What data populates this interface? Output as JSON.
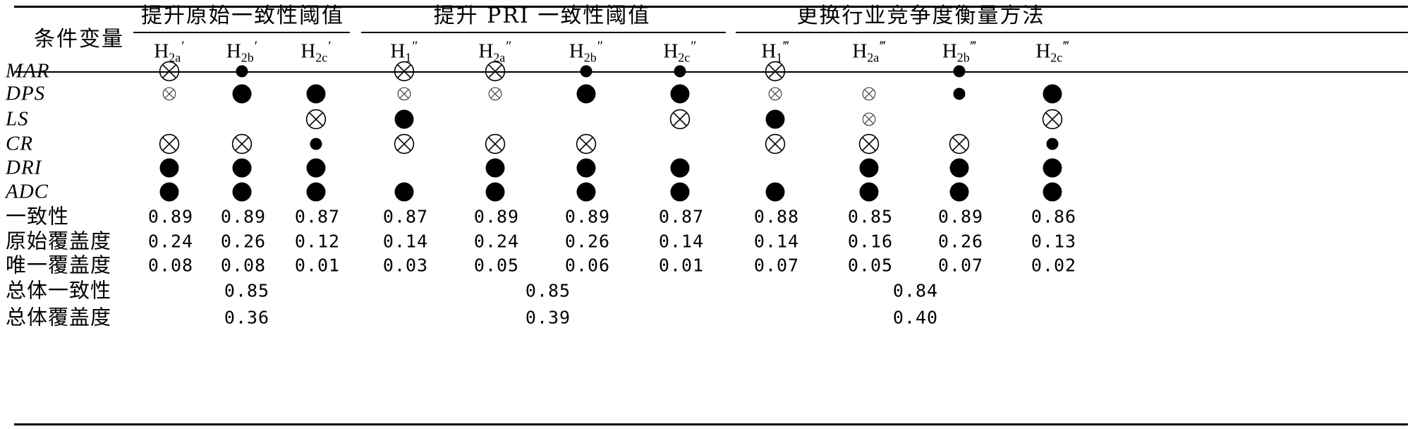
{
  "table": {
    "corner_header": "条件变量",
    "groups": [
      {
        "title": "提升原始一致性阈值",
        "start": 0,
        "span": 3
      },
      {
        "title": "提升 PRI 一致性阈值",
        "start": 3,
        "span": 4
      },
      {
        "title": "更换行业竞争度衡量方法",
        "start": 7,
        "span": 4
      }
    ],
    "columns": [
      {
        "base": "H",
        "sub": "2a",
        "prime": "′"
      },
      {
        "base": "H",
        "sub": "2b",
        "prime": "′"
      },
      {
        "base": "H",
        "sub": "2c",
        "prime": "′"
      },
      {
        "base": "H",
        "sub": "1",
        "prime": "″"
      },
      {
        "base": "H",
        "sub": "2a",
        "prime": "″"
      },
      {
        "base": "H",
        "sub": "2b",
        "prime": "″"
      },
      {
        "base": "H",
        "sub": "2c",
        "prime": "″"
      },
      {
        "base": "H",
        "sub": "1",
        "prime": "‴"
      },
      {
        "base": "H",
        "sub": "2a",
        "prime": "‴"
      },
      {
        "base": "H",
        "sub": "2b",
        "prime": "‴"
      },
      {
        "base": "H",
        "sub": "2c",
        "prime": "‴"
      }
    ],
    "legend_symbols": {
      "B": "core condition present (large filled circle)",
      "b": "peripheral condition present (small filled circle)",
      "X": "core condition absent (large crossed circle)",
      "x": "peripheral condition absent (small crossed circle)",
      "": "blank"
    },
    "condition_rows": [
      {
        "name": "MAR",
        "cells": [
          "X",
          "b",
          "",
          "X",
          "X",
          "b",
          "b",
          "X",
          "",
          "b",
          ""
        ]
      },
      {
        "name": "DPS",
        "cells": [
          "x",
          "B",
          "B",
          "x",
          "x",
          "B",
          "B",
          "x",
          "x",
          "b",
          "B"
        ]
      },
      {
        "name": "LS",
        "cells": [
          "",
          "",
          "X",
          "B",
          "",
          "",
          "X",
          "B",
          "x",
          "",
          "X"
        ]
      },
      {
        "name": "CR",
        "cells": [
          "X",
          "X",
          "b",
          "X",
          "X",
          "X",
          "",
          "X",
          "X",
          "X",
          "b"
        ]
      },
      {
        "name": "DRI",
        "cells": [
          "B",
          "B",
          "B",
          "",
          "B",
          "B",
          "B",
          "",
          "B",
          "B",
          "B"
        ]
      },
      {
        "name": "ADC",
        "cells": [
          "B",
          "B",
          "B",
          "B",
          "B",
          "B",
          "B",
          "B",
          "B",
          "B",
          "B"
        ]
      }
    ],
    "stat_rows": [
      {
        "label": "一致性",
        "values": [
          "0.89",
          "0.89",
          "0.87",
          "0.87",
          "0.89",
          "0.89",
          "0.87",
          "0.88",
          "0.85",
          "0.89",
          "0.86"
        ]
      },
      {
        "label": "原始覆盖度",
        "values": [
          "0.24",
          "0.26",
          "0.12",
          "0.14",
          "0.24",
          "0.26",
          "0.14",
          "0.14",
          "0.16",
          "0.26",
          "0.13"
        ]
      },
      {
        "label": "唯一覆盖度",
        "values": [
          "0.08",
          "0.08",
          "0.01",
          "0.03",
          "0.05",
          "0.06",
          "0.01",
          "0.07",
          "0.05",
          "0.07",
          "0.02"
        ]
      }
    ],
    "overall_rows": [
      {
        "label": "总体一致性",
        "values": [
          "0.85",
          "0.85",
          "0.84"
        ]
      },
      {
        "label": "总体覆盖度",
        "values": [
          "0.36",
          "0.39",
          "0.40"
        ]
      }
    ]
  }
}
